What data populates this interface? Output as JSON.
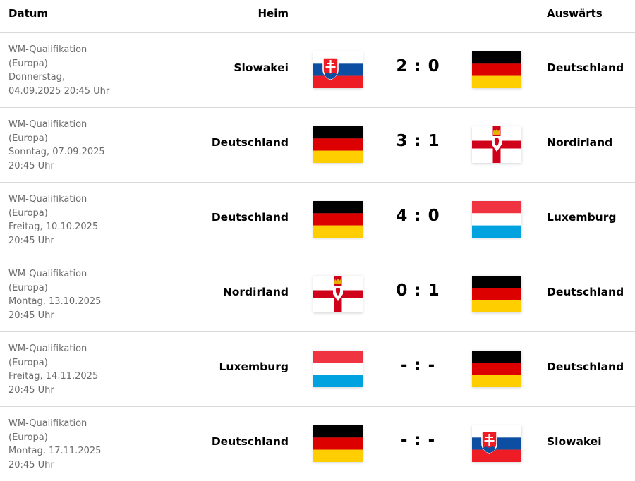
{
  "header": {
    "datum": "Datum",
    "heim": "Heim",
    "auswaerts": "Auswärts"
  },
  "matches": [
    {
      "date_lines": [
        "WM-Qualifikation",
        "(Europa)",
        "Donnerstag,",
        "04.09.2025 20:45 Uhr"
      ],
      "home": "Slowakei",
      "home_flag": "slovakia",
      "score": "2 : 0",
      "away": "Deutschland",
      "away_flag": "germany"
    },
    {
      "date_lines": [
        "WM-Qualifikation",
        "(Europa)",
        "Sonntag, 07.09.2025",
        "20:45 Uhr"
      ],
      "home": "Deutschland",
      "home_flag": "germany",
      "score": "3 : 1",
      "away": "Nordirland",
      "away_flag": "northern-ireland"
    },
    {
      "date_lines": [
        "WM-Qualifikation",
        "(Europa)",
        "Freitag, 10.10.2025",
        "20:45 Uhr"
      ],
      "home": "Deutschland",
      "home_flag": "germany",
      "score": "4 : 0",
      "away": "Luxemburg",
      "away_flag": "luxembourg"
    },
    {
      "date_lines": [
        "WM-Qualifikation",
        "(Europa)",
        "Montag, 13.10.2025",
        "20:45 Uhr"
      ],
      "home": "Nordirland",
      "home_flag": "northern-ireland",
      "score": "0 : 1",
      "away": "Deutschland",
      "away_flag": "germany"
    },
    {
      "date_lines": [
        "WM-Qualifikation",
        "(Europa)",
        "Freitag, 14.11.2025",
        "20:45 Uhr"
      ],
      "home": "Luxemburg",
      "home_flag": "luxembourg",
      "score": "- : -",
      "away": "Deutschland",
      "away_flag": "germany"
    },
    {
      "date_lines": [
        "WM-Qualifikation",
        "(Europa)",
        "Montag, 17.11.2025",
        "20:45 Uhr"
      ],
      "home": "Deutschland",
      "home_flag": "germany",
      "score": "- : -",
      "away": "Slowakei",
      "away_flag": "slovakia"
    }
  ]
}
